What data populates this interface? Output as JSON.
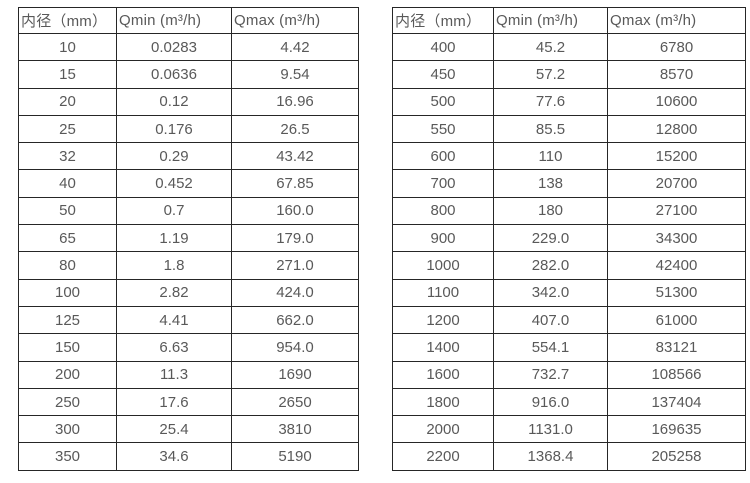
{
  "colors": {
    "background": "#ffffff",
    "border": "#262626",
    "text": "#595959"
  },
  "tables": [
    {
      "headers": [
        "内径（mm）",
        "Qmin (m³/h)",
        "Qmax (m³/h)"
      ],
      "rows": [
        [
          "10",
          "0.0283",
          "4.42"
        ],
        [
          "15",
          "0.0636",
          "9.54"
        ],
        [
          "20",
          "0.12",
          "16.96"
        ],
        [
          "25",
          "0.176",
          "26.5"
        ],
        [
          "32",
          "0.29",
          "43.42"
        ],
        [
          "40",
          "0.452",
          "67.85"
        ],
        [
          "50",
          "0.7",
          "160.0"
        ],
        [
          "65",
          "1.19",
          "179.0"
        ],
        [
          "80",
          "1.8",
          "271.0"
        ],
        [
          "100",
          "2.82",
          "424.0"
        ],
        [
          "125",
          "4.41",
          "662.0"
        ],
        [
          "150",
          "6.63",
          "954.0"
        ],
        [
          "200",
          "11.3",
          "1690"
        ],
        [
          "250",
          "17.6",
          "2650"
        ],
        [
          "300",
          "25.4",
          "3810"
        ],
        [
          "350",
          "34.6",
          "5190"
        ]
      ]
    },
    {
      "headers": [
        "内径（mm）",
        "Qmin (m³/h)",
        "Qmax (m³/h)"
      ],
      "rows": [
        [
          "400",
          "45.2",
          "6780"
        ],
        [
          "450",
          "57.2",
          "8570"
        ],
        [
          "500",
          "77.6",
          "10600"
        ],
        [
          "550",
          "85.5",
          "12800"
        ],
        [
          "600",
          "110",
          "15200"
        ],
        [
          "700",
          "138",
          "20700"
        ],
        [
          "800",
          "180",
          "27100"
        ],
        [
          "900",
          "229.0",
          "34300"
        ],
        [
          "1000",
          "282.0",
          "42400"
        ],
        [
          "1100",
          "342.0",
          "51300"
        ],
        [
          "1200",
          "407.0",
          "61000"
        ],
        [
          "1400",
          "554.1",
          "83121"
        ],
        [
          "1600",
          "732.7",
          "108566"
        ],
        [
          "1800",
          "916.0",
          "137404"
        ],
        [
          "2000",
          "1131.0",
          "169635"
        ],
        [
          "2200",
          "1368.4",
          "205258"
        ]
      ]
    }
  ]
}
